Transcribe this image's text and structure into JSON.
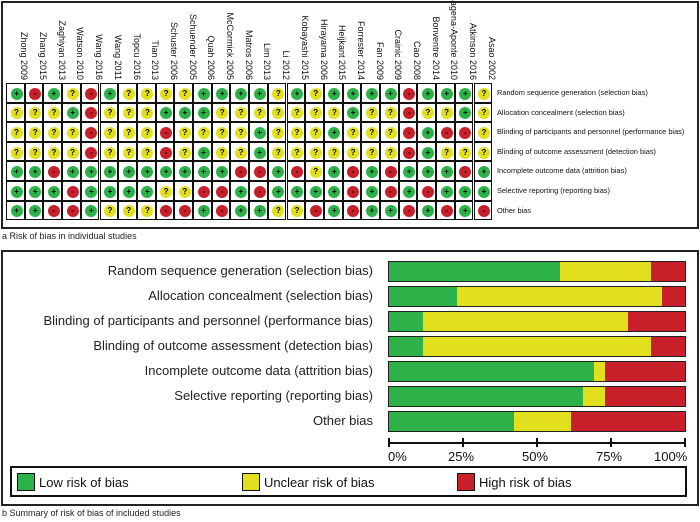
{
  "colors": {
    "low": "#2db24a",
    "unclear": "#e2e01e",
    "high": "#c8202a"
  },
  "symbols": {
    "low": "+",
    "unclear": "?",
    "high": "-"
  },
  "panel_a_caption": "a Risk of bias in individual studies",
  "panel_b_caption": "b Summary of risk of bias of included studies",
  "chart_data": [
    {
      "type": "table",
      "studies": [
        "Zhong 2009",
        "Zhang 2015",
        "Zaghiyan 2013",
        "Watson 2010",
        "Wang 2016",
        "Wang 2011",
        "Topcu 2016",
        "Tian 2013",
        "Schuster 2006",
        "Schuender 2005",
        "Quah 2006",
        "McCormick 2005",
        "Matros 2006",
        "Lim 2013",
        "Li 2012",
        "Kobayashi 2015",
        "Hirayama 2006",
        "Heijkant 2015",
        "Forrester 2014",
        "Fan 2009",
        "Crainic 2009",
        "Cao 2008",
        "Bonventre 2014",
        "Bagena-Aponte 2010",
        "Atkinson 2016",
        "Asao 2002"
      ],
      "domains": [
        "Random sequence generation (selection bias)",
        "Allocation concealment (selection bias)",
        "Blinding of participants and personnel (performance bias)",
        "Blinding of outcome assessment (detection bias)",
        "Incomplete outcome data (attrition bias)",
        "Selective reporting (reporting bias)",
        "Other bias"
      ],
      "judgements": [
        [
          "low",
          "high",
          "low",
          "unclear",
          "high",
          "low",
          "unclear",
          "unclear",
          "unclear",
          "unclear",
          "low",
          "low",
          "low",
          "low",
          "unclear",
          "low",
          "unclear",
          "low",
          "low",
          "low",
          "low",
          "high",
          "low",
          "low",
          "low",
          "unclear"
        ],
        [
          "unclear",
          "unclear",
          "unclear",
          "low",
          "high",
          "unclear",
          "unclear",
          "unclear",
          "low",
          "low",
          "low",
          "unclear",
          "unclear",
          "unclear",
          "unclear",
          "unclear",
          "unclear",
          "unclear",
          "low",
          "unclear",
          "unclear",
          "high",
          "unclear",
          "unclear",
          "low",
          "unclear"
        ],
        [
          "unclear",
          "unclear",
          "unclear",
          "unclear",
          "high",
          "unclear",
          "unclear",
          "unclear",
          "high",
          "unclear",
          "unclear",
          "unclear",
          "unclear",
          "low",
          "unclear",
          "unclear",
          "unclear",
          "low",
          "unclear",
          "unclear",
          "unclear",
          "high",
          "low",
          "high",
          "high",
          "unclear"
        ],
        [
          "unclear",
          "unclear",
          "unclear",
          "unclear",
          "high",
          "unclear",
          "unclear",
          "unclear",
          "high",
          "unclear",
          "low",
          "unclear",
          "unclear",
          "low",
          "unclear",
          "unclear",
          "unclear",
          "unclear",
          "unclear",
          "unclear",
          "unclear",
          "high",
          "low",
          "unclear",
          "unclear",
          "unclear"
        ],
        [
          "low",
          "low",
          "high",
          "low",
          "low",
          "low",
          "low",
          "low",
          "low",
          "low",
          "low",
          "low",
          "high",
          "high",
          "low",
          "high",
          "unclear",
          "low",
          "high",
          "low",
          "high",
          "low",
          "low",
          "low",
          "high",
          "low"
        ],
        [
          "low",
          "low",
          "low",
          "high",
          "low",
          "low",
          "low",
          "low",
          "unclear",
          "unclear",
          "high",
          "high",
          "low",
          "high",
          "low",
          "low",
          "low",
          "low",
          "high",
          "low",
          "high",
          "low",
          "high",
          "low",
          "low",
          "low"
        ],
        [
          "low",
          "low",
          "high",
          "high",
          "low",
          "unclear",
          "unclear",
          "unclear",
          "high",
          "high",
          "low",
          "high",
          "low",
          "low",
          "unclear",
          "unclear",
          "high",
          "low",
          "high",
          "low",
          "low",
          "high",
          "low",
          "high",
          "low",
          "high"
        ]
      ]
    },
    {
      "type": "bar",
      "stacked": true,
      "orientation": "horizontal",
      "categories": [
        "Random sequence generation (selection bias)",
        "Allocation concealment (selection bias)",
        "Blinding of participants and personnel (performance bias)",
        "Blinding of outcome assessment (detection bias)",
        "Incomplete outcome data (attrition bias)",
        "Selective reporting (reporting bias)",
        "Other bias"
      ],
      "series": [
        {
          "name": "Low risk of bias",
          "key": "low",
          "values": [
            57.7,
            23.1,
            11.5,
            11.5,
            69.2,
            65.4,
            42.3
          ]
        },
        {
          "name": "Unclear risk of bias",
          "key": "unclear",
          "values": [
            30.8,
            69.2,
            69.2,
            76.9,
            3.8,
            7.7,
            19.2
          ]
        },
        {
          "name": "High risk of bias",
          "key": "high",
          "values": [
            11.5,
            7.7,
            19.2,
            11.5,
            26.9,
            26.9,
            38.5
          ]
        }
      ],
      "xlim": [
        0,
        100
      ],
      "xticks": [
        "0%",
        "25%",
        "50%",
        "75%",
        "100%"
      ],
      "legend_position": "bottom"
    }
  ]
}
